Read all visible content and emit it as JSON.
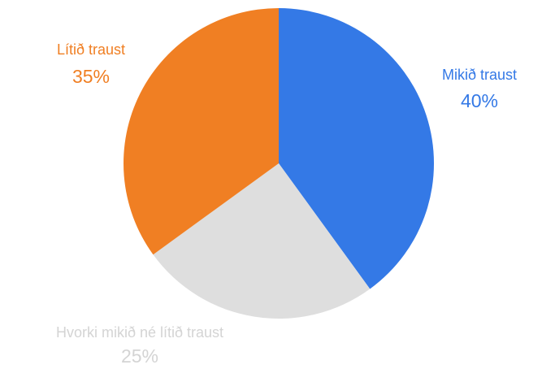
{
  "chart_data": {
    "type": "pie",
    "categories": [
      "Mikið traust",
      "Hvorki mikið né lítið traust",
      "Lítið traust"
    ],
    "values": [
      40,
      25,
      35
    ],
    "value_labels": [
      "40%",
      "25%",
      "35%"
    ],
    "colors": [
      "#3479e6",
      "#dedede",
      "#f07f23"
    ],
    "label_colors": [
      "#3479e6",
      "#d4d4d4",
      "#f07f23"
    ]
  }
}
